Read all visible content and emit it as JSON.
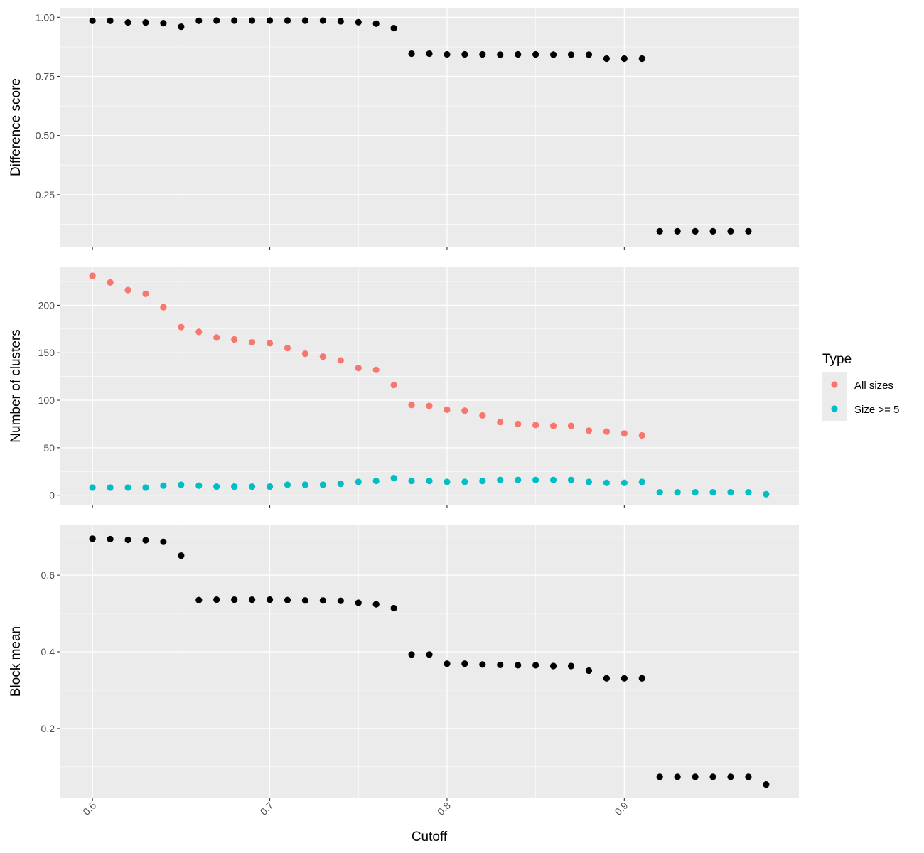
{
  "chart_data": [
    {
      "type": "scatter",
      "ylabel": "Difference score",
      "ylim": [
        0.03,
        1.04
      ],
      "yticks": [
        0.25,
        0.5,
        0.75,
        1.0
      ],
      "ytick_labels": [
        "0.25",
        "0.50",
        "0.75",
        "1.00"
      ],
      "grid": true,
      "series": [
        {
          "color": "#000000",
          "x": [
            0.6,
            0.61,
            0.62,
            0.63,
            0.64,
            0.65,
            0.66,
            0.67,
            0.68,
            0.69,
            0.7,
            0.71,
            0.72,
            0.73,
            0.74,
            0.75,
            0.76,
            0.77,
            0.78,
            0.79,
            0.8,
            0.81,
            0.82,
            0.83,
            0.84,
            0.85,
            0.86,
            0.87,
            0.88,
            0.89,
            0.9,
            0.91,
            0.92,
            0.93,
            0.94,
            0.95,
            0.96,
            0.97
          ],
          "y": [
            0.985,
            0.985,
            0.978,
            0.978,
            0.975,
            0.96,
            0.985,
            0.986,
            0.986,
            0.986,
            0.986,
            0.986,
            0.986,
            0.986,
            0.983,
            0.979,
            0.973,
            0.954,
            0.846,
            0.846,
            0.843,
            0.843,
            0.843,
            0.842,
            0.843,
            0.843,
            0.842,
            0.842,
            0.842,
            0.825,
            0.825,
            0.825,
            0.095,
            0.095,
            0.095,
            0.095,
            0.095,
            0.095
          ]
        }
      ]
    },
    {
      "type": "scatter",
      "ylabel": "Number of clusters",
      "ylim": [
        -10,
        240
      ],
      "yticks": [
        0,
        50,
        100,
        150,
        200
      ],
      "ytick_labels": [
        "0",
        "50",
        "100",
        "150",
        "200"
      ],
      "grid": true,
      "legend": {
        "title": "Type",
        "position": "right",
        "entries": [
          {
            "label": "All sizes",
            "color": "#F8766D"
          },
          {
            "label": "Size >= 5",
            "color": "#00BFC4"
          }
        ]
      },
      "series": [
        {
          "name": "All sizes",
          "color": "#F8766D",
          "x": [
            0.6,
            0.61,
            0.62,
            0.63,
            0.64,
            0.65,
            0.66,
            0.67,
            0.68,
            0.69,
            0.7,
            0.71,
            0.72,
            0.73,
            0.74,
            0.75,
            0.76,
            0.77,
            0.78,
            0.79,
            0.8,
            0.81,
            0.82,
            0.83,
            0.84,
            0.85,
            0.86,
            0.87,
            0.88,
            0.89,
            0.9,
            0.91
          ],
          "y": [
            231,
            224,
            216,
            212,
            198,
            177,
            172,
            166,
            164,
            161,
            160,
            155,
            149,
            146,
            142,
            134,
            132,
            116,
            95,
            94,
            90,
            89,
            84,
            77,
            75,
            74,
            73,
            73,
            68,
            67,
            65,
            63
          ]
        },
        {
          "name": "Size >= 5",
          "color": "#00BFC4",
          "x": [
            0.6,
            0.61,
            0.62,
            0.63,
            0.64,
            0.65,
            0.66,
            0.67,
            0.68,
            0.69,
            0.7,
            0.71,
            0.72,
            0.73,
            0.74,
            0.75,
            0.76,
            0.77,
            0.78,
            0.79,
            0.8,
            0.81,
            0.82,
            0.83,
            0.84,
            0.85,
            0.86,
            0.87,
            0.88,
            0.89,
            0.9,
            0.91,
            0.92,
            0.93,
            0.94,
            0.95,
            0.96,
            0.97,
            0.98
          ],
          "y": [
            8,
            8,
            8,
            8,
            10,
            11,
            10,
            9,
            9,
            9,
            9,
            11,
            11,
            11,
            12,
            14,
            15,
            18,
            15,
            15,
            14,
            14,
            15,
            16,
            16,
            16,
            16,
            16,
            14,
            13,
            13,
            14,
            3,
            3,
            3,
            3,
            3,
            3,
            1
          ]
        }
      ]
    },
    {
      "type": "scatter",
      "ylabel": "Block mean",
      "xlabel": "Cutoff",
      "xlim": [
        0.5815,
        0.9985
      ],
      "xticks": [
        0.6,
        0.7,
        0.8,
        0.9
      ],
      "xtick_labels": [
        "0.6",
        "0.7",
        "0.8",
        "0.9"
      ],
      "ylim": [
        0.02,
        0.73
      ],
      "yticks": [
        0.2,
        0.4,
        0.6
      ],
      "ytick_labels": [
        "0.2",
        "0.4",
        "0.6"
      ],
      "grid": true,
      "series": [
        {
          "color": "#000000",
          "x": [
            0.6,
            0.61,
            0.62,
            0.63,
            0.64,
            0.65,
            0.66,
            0.67,
            0.68,
            0.69,
            0.7,
            0.71,
            0.72,
            0.73,
            0.74,
            0.75,
            0.76,
            0.77,
            0.78,
            0.79,
            0.8,
            0.81,
            0.82,
            0.83,
            0.84,
            0.85,
            0.86,
            0.87,
            0.88,
            0.89,
            0.9,
            0.91,
            0.92,
            0.93,
            0.94,
            0.95,
            0.96,
            0.97,
            0.98
          ],
          "y": [
            0.695,
            0.694,
            0.692,
            0.691,
            0.687,
            0.651,
            0.535,
            0.536,
            0.536,
            0.536,
            0.536,
            0.535,
            0.534,
            0.534,
            0.533,
            0.528,
            0.524,
            0.514,
            0.393,
            0.393,
            0.369,
            0.369,
            0.367,
            0.366,
            0.365,
            0.365,
            0.363,
            0.363,
            0.351,
            0.331,
            0.331,
            0.331,
            0.074,
            0.074,
            0.074,
            0.074,
            0.074,
            0.074,
            0.054
          ]
        }
      ]
    }
  ]
}
